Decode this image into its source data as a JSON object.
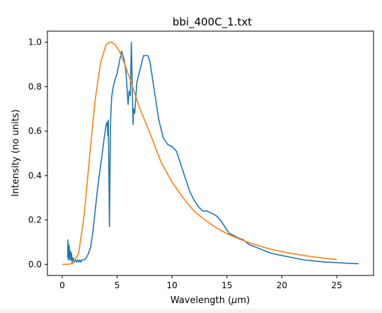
{
  "chart_data": {
    "type": "line",
    "title": "bbi_400C_1.txt",
    "xlabel_prefix": "Wavelength (",
    "xlabel_mu": "μ",
    "xlabel_suffix": "m)",
    "ylabel": "Intensity (no units)",
    "xlim": [
      -1.35,
      28.35
    ],
    "ylim": [
      -0.05,
      1.05
    ],
    "x_ticks": [
      "0",
      "5",
      "10",
      "15",
      "20",
      "25"
    ],
    "y_ticks": [
      "0.0",
      "0.2",
      "0.4",
      "0.6",
      "0.8",
      "1.0"
    ],
    "grid": false,
    "colors": {
      "measured": "#1f77b4",
      "model": "#ff7f0e"
    },
    "series": [
      {
        "x": [
          0.5,
          0.52,
          0.55,
          0.58,
          0.6,
          0.65,
          0.7,
          0.75,
          0.8,
          0.85,
          0.9,
          1.0,
          1.1,
          1.2,
          1.3,
          1.4,
          1.5,
          1.6,
          1.7,
          1.8,
          2.0,
          2.2,
          2.4,
          2.6,
          2.8,
          3.0,
          3.2,
          3.4,
          3.6,
          3.8,
          4.0,
          4.1,
          4.15,
          4.2,
          4.25,
          4.3,
          4.35,
          4.4,
          4.45,
          4.5,
          4.6,
          4.8,
          5.0,
          5.2,
          5.4,
          5.6,
          5.8,
          6.0,
          6.1,
          6.2,
          6.3,
          6.4,
          6.45,
          6.5,
          6.6,
          6.8,
          7.0,
          7.2,
          7.4,
          7.6,
          7.8,
          8.0,
          8.4,
          8.8,
          9.2,
          9.6,
          10.0,
          10.4,
          10.8,
          11.2,
          11.6,
          12.0,
          12.4,
          12.8,
          13.2,
          13.6,
          14.0,
          14.4,
          14.8,
          15.2,
          15.6,
          16.0,
          16.5,
          17.0,
          17.5,
          18.0,
          19.0,
          20.0,
          21.0,
          22.0,
          23.0,
          24.0,
          25.0,
          26.0,
          27.0
        ],
        "y": [
          0.03,
          0.11,
          0.02,
          0.09,
          0.03,
          0.08,
          0.02,
          0.06,
          0.02,
          0.05,
          0.01,
          0.03,
          0.01,
          0.02,
          0.01,
          0.02,
          0.01,
          0.02,
          0.01,
          0.02,
          0.02,
          0.03,
          0.05,
          0.08,
          0.15,
          0.24,
          0.33,
          0.41,
          0.48,
          0.56,
          0.63,
          0.64,
          0.58,
          0.65,
          0.42,
          0.17,
          0.43,
          0.64,
          0.7,
          0.75,
          0.79,
          0.83,
          0.86,
          0.91,
          0.96,
          0.93,
          0.87,
          0.72,
          0.78,
          0.76,
          1.0,
          0.75,
          0.63,
          0.7,
          0.68,
          0.82,
          0.86,
          0.9,
          0.94,
          0.94,
          0.94,
          0.91,
          0.78,
          0.65,
          0.57,
          0.54,
          0.53,
          0.51,
          0.45,
          0.39,
          0.33,
          0.29,
          0.26,
          0.24,
          0.24,
          0.23,
          0.22,
          0.2,
          0.17,
          0.14,
          0.13,
          0.12,
          0.11,
          0.09,
          0.08,
          0.07,
          0.05,
          0.04,
          0.03,
          0.02,
          0.015,
          0.01,
          0.008,
          0.005,
          0.003
        ]
      },
      {
        "x": [
          0.0,
          0.5,
          1.0,
          1.5,
          2.0,
          2.5,
          3.0,
          3.5,
          4.0,
          4.3,
          4.5,
          4.8,
          5.2,
          5.7,
          6.2,
          7.0,
          8.0,
          9.0,
          10.0,
          11.0,
          12.0,
          13.0,
          14.0,
          15.0,
          16.0,
          17.0,
          18.0,
          19.0,
          20.0,
          21.0,
          22.0,
          23.0,
          24.0,
          25.0
        ],
        "y": [
          0.0,
          0.0,
          0.005,
          0.05,
          0.22,
          0.49,
          0.74,
          0.91,
          0.99,
          1.0,
          1.0,
          0.99,
          0.96,
          0.9,
          0.83,
          0.71,
          0.59,
          0.46,
          0.37,
          0.3,
          0.24,
          0.2,
          0.165,
          0.138,
          0.117,
          0.098,
          0.082,
          0.068,
          0.057,
          0.048,
          0.04,
          0.033,
          0.027,
          0.022
        ]
      }
    ]
  }
}
